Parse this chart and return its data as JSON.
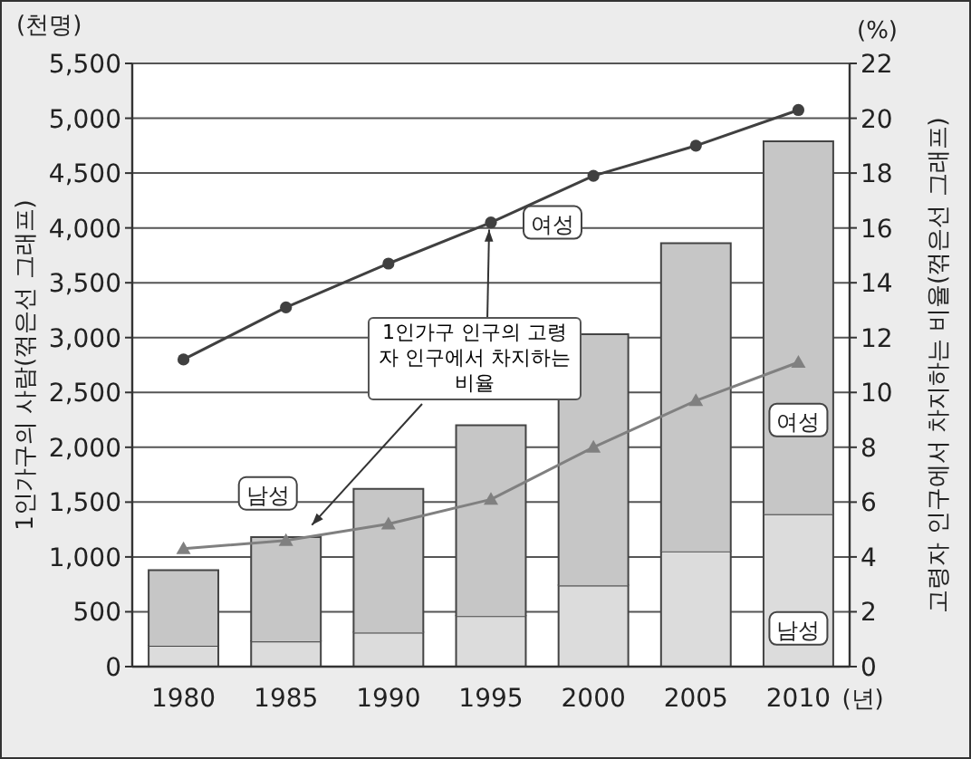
{
  "chart_data": {
    "type": "bar",
    "stacked": true,
    "grid": "y",
    "categories": [
      "1980",
      "1985",
      "1990",
      "1995",
      "2000",
      "2005",
      "2010"
    ],
    "xlabel": "(년)",
    "ylabel": "1인가구의 사람(꺾은선 그래프)",
    "y2label": "고령자 인구에서 차지하는 비율(꺾은선 그래프)",
    "ylim": [
      0,
      5500
    ],
    "yticks": [
      0,
      500,
      {
        "value": 1000,
        "label": "1,000"
      },
      {
        "value": 1500,
        "label": "1,500"
      },
      {
        "value": 2000,
        "label": "2,000"
      },
      {
        "value": 2500,
        "label": "2,500"
      },
      {
        "value": 3000,
        "label": "3,000"
      },
      {
        "value": 3500,
        "label": "3,500"
      },
      {
        "value": 4000,
        "label": "4,000"
      },
      {
        "value": 4500,
        "label": "4,500"
      },
      {
        "value": 5000,
        "label": "5,000"
      },
      {
        "value": 5500,
        "label": "5,500"
      }
    ],
    "y2lim": [
      0,
      22
    ],
    "y2ticks": [
      0,
      2,
      4,
      6,
      8,
      10,
      12,
      14,
      16,
      18,
      20,
      22
    ],
    "series": [
      {
        "name": "남성",
        "color": "#dcdcdc",
        "values": [
          190,
          230,
          310,
          460,
          740,
          1050,
          1390
        ]
      },
      {
        "name": "여성",
        "color": "#c6c6c6",
        "values": [
          690,
          950,
          1310,
          1740,
          2290,
          2810,
          3400
        ]
      },
      {
        "name": "남성",
        "type": "line",
        "axis": "y2",
        "color": "#808080",
        "marker": "triangle",
        "values": [
          4.3,
          4.6,
          5.2,
          6.1,
          8.0,
          9.7,
          11.1
        ]
      },
      {
        "name": "여성",
        "type": "line",
        "axis": "y2",
        "color": "#404040",
        "marker": "circle",
        "values": [
          11.2,
          13.1,
          14.7,
          16.2,
          17.9,
          19.0,
          20.3
        ]
      }
    ],
    "annotations": [
      "(천명)",
      "(%)",
      {
        "text": "1인가구 인구의 고령자 인구에서 차지하는 비율",
        "x": "1995",
        "y": 4050
      }
    ]
  }
}
